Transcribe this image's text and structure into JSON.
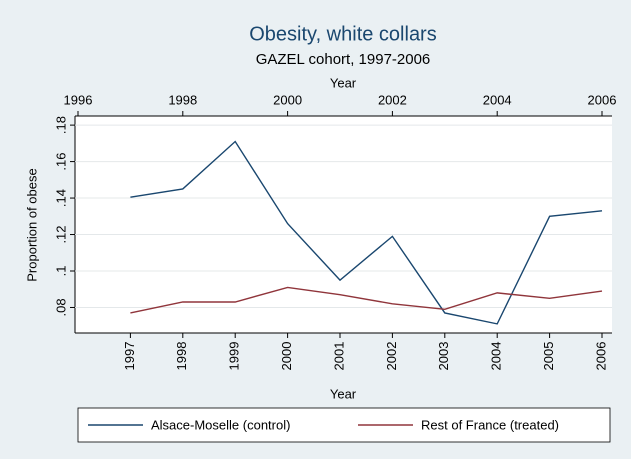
{
  "chart_data": {
    "type": "line",
    "title": "Obesity, white collars",
    "subtitle": "GAZEL cohort, 1997-2006",
    "xlabel_top": "Year",
    "xlabel": "Year",
    "ylabel": "Proportion of obese",
    "x": [
      1997,
      1998,
      1999,
      2000,
      2001,
      2002,
      2003,
      2004,
      2005,
      2006
    ],
    "xlim": [
      1996,
      2006
    ],
    "xticks": [
      1996,
      1998,
      2000,
      2002,
      2004,
      2006
    ],
    "ylim": [
      0.066,
      0.185
    ],
    "yticks": [
      {
        "value": 0.08,
        "label": ".08"
      },
      {
        "value": 0.1,
        "label": ".1"
      },
      {
        "value": 0.12,
        "label": ".12"
      },
      {
        "value": 0.14,
        "label": ".14"
      },
      {
        "value": 0.16,
        "label": ".16"
      },
      {
        "value": 0.18,
        "label": ".18"
      }
    ],
    "grid": true,
    "legend": "bottom",
    "series": [
      {
        "name": "Alsace-Moselle (control)",
        "color": "#1a476f",
        "values": [
          0.1405,
          0.145,
          0.171,
          0.126,
          0.095,
          0.119,
          0.077,
          0.071,
          0.13,
          0.133
        ]
      },
      {
        "name": "Rest of France (treated)",
        "color": "#90353b",
        "values": [
          0.077,
          0.083,
          0.083,
          0.091,
          0.087,
          0.082,
          0.079,
          0.088,
          0.085,
          0.089
        ]
      }
    ]
  }
}
